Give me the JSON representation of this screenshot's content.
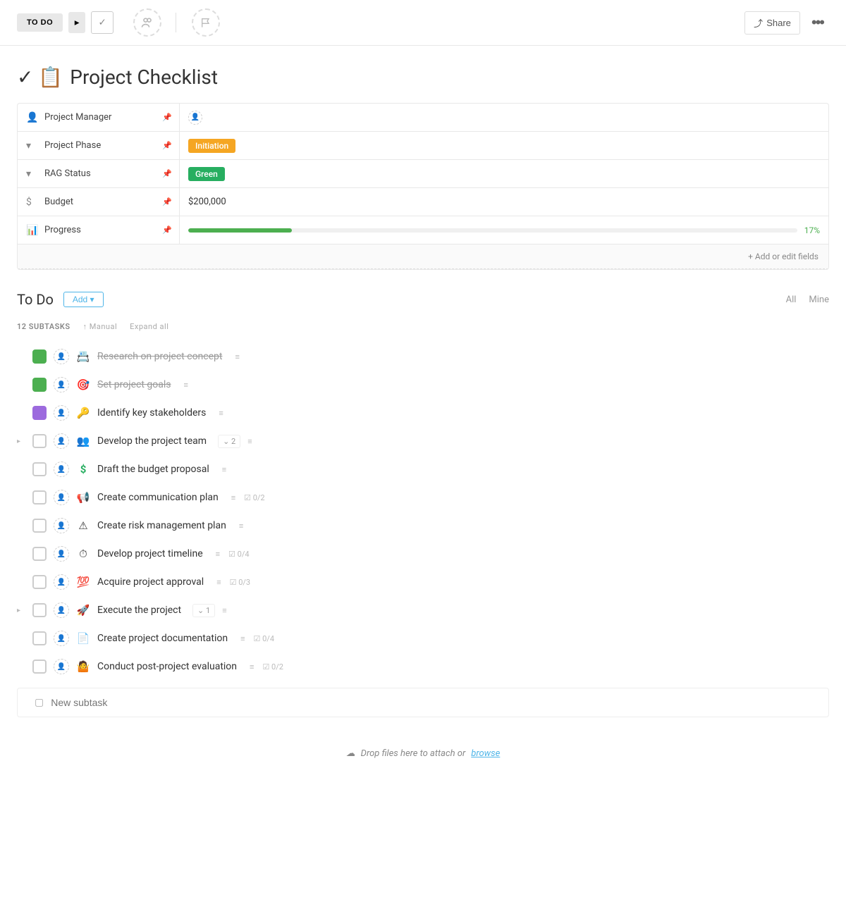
{
  "toolbar": {
    "status_label": "TO DO",
    "share_label": "Share"
  },
  "page": {
    "title": "Project Checklist",
    "title_icon": "✓📋"
  },
  "fields": {
    "project_manager": {
      "label": "Project Manager",
      "icon": "👤",
      "value": ""
    },
    "project_phase": {
      "label": "Project Phase",
      "icon": "▾",
      "value": "Initiation",
      "bg": "#f5a623"
    },
    "rag_status": {
      "label": "RAG Status",
      "icon": "▾",
      "value": "Green",
      "bg": "#27ae60"
    },
    "budget": {
      "label": "Budget",
      "icon": "$",
      "value": "$200,000"
    },
    "progress": {
      "label": "Progress",
      "icon": "📊",
      "pct": 17,
      "pct_label": "17%"
    },
    "add_edit_label": "+ Add or edit fields"
  },
  "todo": {
    "heading": "To Do",
    "add_label": "Add ▾",
    "filter_all": "All",
    "filter_mine": "Mine"
  },
  "subtasks": {
    "count_label": "12 SUBTASKS",
    "manual_label": "↑ Manual",
    "expand_label": "Expand all",
    "items": [
      {
        "emoji": "📇",
        "title": "Research on project concept",
        "done": true,
        "status": "done"
      },
      {
        "emoji": "🎯",
        "title": "Set project goals",
        "done": true,
        "status": "done"
      },
      {
        "emoji": "🔑",
        "title": "Identify key stakeholders",
        "done": false,
        "status": "purple"
      },
      {
        "emoji": "👥",
        "title": "Develop the project team",
        "done": false,
        "subtasks": "2",
        "expand": true
      },
      {
        "emoji": "$",
        "title": "Draft the budget proposal",
        "done": false,
        "dollar": true
      },
      {
        "emoji": "📢",
        "title": "Create communication plan",
        "done": false,
        "checklist": "0/2"
      },
      {
        "emoji": "⚠",
        "title": "Create risk management plan",
        "done": false
      },
      {
        "emoji": "⏱",
        "title": "Develop project timeline",
        "done": false,
        "checklist": "0/4"
      },
      {
        "emoji": "💯",
        "title": "Acquire project approval",
        "done": false,
        "checklist": "0/3"
      },
      {
        "emoji": "🚀",
        "title": "Execute the project",
        "done": false,
        "subtasks": "1",
        "expand": true
      },
      {
        "emoji": "📄",
        "title": "Create project documentation",
        "done": false,
        "checklist": "0/4"
      },
      {
        "emoji": "🤷",
        "title": "Conduct post-project evaluation",
        "done": false,
        "checklist": "0/2"
      }
    ],
    "new_task_placeholder": "New subtask"
  },
  "dropzone": {
    "text": "Drop files here to attach or",
    "link": "browse"
  },
  "colors": {
    "green": "#4caf50",
    "orange": "#f5a623",
    "blue": "#4fb5e8"
  }
}
